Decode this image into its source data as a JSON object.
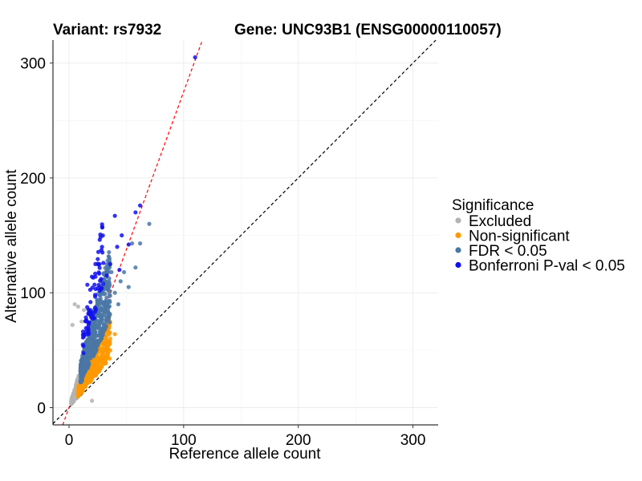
{
  "chart_data": {
    "type": "scatter",
    "title_left": "Variant: rs7932",
    "title_right": "Gene: UNC93B1 (ENSG00000110057)",
    "xlabel": "Reference allele count",
    "ylabel": "Alternative allele count",
    "xlim": [
      -14,
      322
    ],
    "ylim": [
      -15,
      320
    ],
    "xticks": [
      0,
      100,
      200,
      300
    ],
    "yticks": [
      0,
      100,
      200,
      300
    ],
    "grid": true,
    "legend_placement": "right",
    "legend_title": "Significance",
    "reference_lines": [
      {
        "slope": 1,
        "intercept": 0,
        "color": "#000000",
        "style": "dashed"
      },
      {
        "slope": 2.75,
        "intercept": 0,
        "color": "#ff0000",
        "style": "dashed"
      }
    ],
    "series": [
      {
        "name": "Excluded",
        "color": "#b3b3b3",
        "cluster": {
          "x_min": 2,
          "x_max": 22,
          "ratio_min": 1.3,
          "ratio_max": 3.4,
          "count": 340
        },
        "points": [
          [
            20,
            6
          ],
          [
            13,
            85
          ],
          [
            5,
            90
          ],
          [
            8,
            88
          ],
          [
            11,
            75
          ],
          [
            3,
            72
          ]
        ]
      },
      {
        "name": "Non-significant",
        "color": "#ff9900",
        "cluster": {
          "x_min": 8,
          "x_max": 36,
          "ratio_min": 1.2,
          "ratio_max": 2.3,
          "count": 420
        },
        "points": [
          [
            40,
            64
          ],
          [
            36,
            60
          ],
          [
            33,
            58
          ],
          [
            30,
            55
          ]
        ]
      },
      {
        "name": "FDR < 0.05",
        "color": "#4a77a6",
        "cluster": {
          "x_min": 10,
          "x_max": 36,
          "ratio_min": 2.1,
          "ratio_max": 3.9,
          "count": 500
        },
        "points": [
          [
            70,
            160
          ],
          [
            62,
            143
          ],
          [
            55,
            143
          ],
          [
            48,
            118
          ],
          [
            45,
            110
          ],
          [
            52,
            105
          ],
          [
            58,
            122
          ],
          [
            40,
            100
          ],
          [
            43,
            90
          ],
          [
            37,
            118
          ],
          [
            28,
            85
          ],
          [
            32,
            110
          ]
        ]
      },
      {
        "name": "Bonferroni P-val < 0.05",
        "color": "#1010ee",
        "cluster": {
          "x_min": 12,
          "x_max": 30,
          "ratio_min": 3.5,
          "ratio_max": 5.6,
          "count": 75
        },
        "points": [
          [
            110,
            305
          ],
          [
            62,
            176
          ],
          [
            58,
            170
          ],
          [
            40,
            167
          ],
          [
            52,
            142
          ],
          [
            46,
            150
          ],
          [
            42,
            140
          ],
          [
            30,
            126
          ],
          [
            23,
            125
          ],
          [
            36,
            125
          ],
          [
            44,
            120
          ],
          [
            16,
            107
          ],
          [
            25,
            104
          ],
          [
            28,
            112
          ],
          [
            20,
            114
          ],
          [
            33,
            115
          ]
        ]
      }
    ]
  }
}
